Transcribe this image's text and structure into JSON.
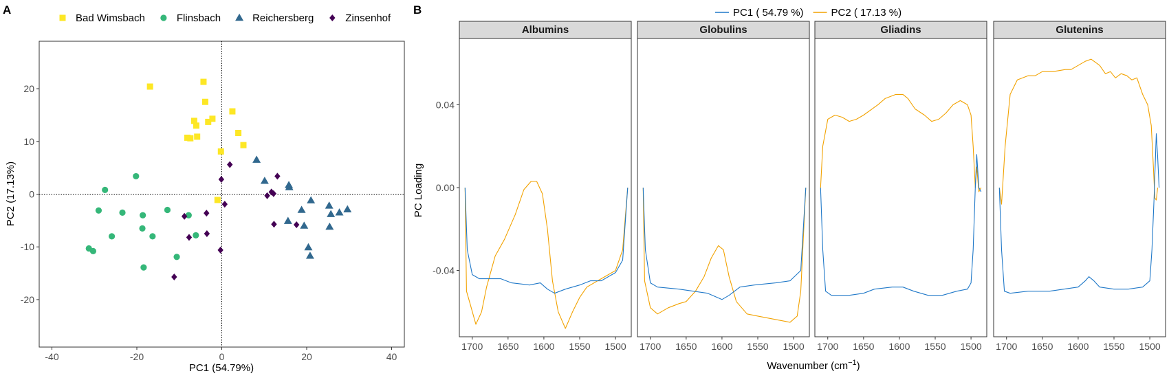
{
  "panel_labels": {
    "a": "A",
    "b": "B"
  },
  "chart_data": [
    {
      "type": "scatter",
      "xlabel": "PC1 (54.79%)",
      "ylabel": "PC2 (17.13%)",
      "xlim": [
        -43,
        43
      ],
      "ylim": [
        -29,
        29
      ],
      "xticks": [
        -40,
        -20,
        0,
        20,
        40
      ],
      "yticks": [
        -20,
        -10,
        0,
        10,
        20
      ],
      "reference_lines": {
        "x": 0,
        "y": 0,
        "style": "dotted"
      },
      "legend_position": "top",
      "series": [
        {
          "name": "Bad Wimsbach",
          "color": "#FDE725",
          "shape": "square",
          "points": [
            [
              -16.9,
              20.4
            ],
            [
              -4.3,
              21.3
            ],
            [
              -3.9,
              17.5
            ],
            [
              -6.5,
              13.9
            ],
            [
              -6.0,
              13.0
            ],
            [
              -3.2,
              13.7
            ],
            [
              -2.2,
              14.3
            ],
            [
              2.5,
              15.7
            ],
            [
              3.9,
              11.6
            ],
            [
              5.1,
              9.3
            ],
            [
              -7.4,
              10.6
            ],
            [
              -8.1,
              10.7
            ],
            [
              -5.8,
              10.9
            ],
            [
              -0.2,
              8.1
            ],
            [
              -1.0,
              -1.1
            ]
          ]
        },
        {
          "name": "Flinsbach",
          "color": "#35B779",
          "shape": "circle",
          "points": [
            [
              -20.2,
              3.4
            ],
            [
              -27.5,
              0.8
            ],
            [
              -29.0,
              -3.1
            ],
            [
              -23.4,
              -3.5
            ],
            [
              -18.6,
              -4.0
            ],
            [
              -12.8,
              -3.0
            ],
            [
              -18.7,
              -6.5
            ],
            [
              -16.3,
              -8.0
            ],
            [
              -25.9,
              -8.0
            ],
            [
              -31.3,
              -10.3
            ],
            [
              -30.3,
              -10.8
            ],
            [
              -18.4,
              -13.9
            ],
            [
              -10.6,
              -11.9
            ],
            [
              -7.8,
              -4.0
            ],
            [
              -6.1,
              -7.8
            ]
          ]
        },
        {
          "name": "Reichersberg",
          "color": "#31688E",
          "shape": "triangle",
          "points": [
            [
              8.2,
              6.5
            ],
            [
              10.1,
              2.5
            ],
            [
              15.8,
              1.7
            ],
            [
              15.9,
              1.3
            ],
            [
              21.0,
              -1.2
            ],
            [
              18.8,
              -3.0
            ],
            [
              25.3,
              -2.2
            ],
            [
              25.7,
              -3.8
            ],
            [
              27.7,
              -3.5
            ],
            [
              29.6,
              -2.9
            ],
            [
              15.6,
              -5.1
            ],
            [
              19.4,
              -6.0
            ],
            [
              25.4,
              -6.2
            ],
            [
              20.4,
              -10.1
            ],
            [
              20.8,
              -11.7
            ]
          ]
        },
        {
          "name": "Zinsenhof",
          "color": "#440154",
          "shape": "diamond",
          "points": [
            [
              1.9,
              5.6
            ],
            [
              -0.1,
              2.8
            ],
            [
              13.1,
              3.4
            ],
            [
              11.7,
              0.4
            ],
            [
              12.2,
              0.1
            ],
            [
              10.7,
              -0.3
            ],
            [
              0.7,
              -1.9
            ],
            [
              -3.6,
              -3.6
            ],
            [
              -8.8,
              -4.2
            ],
            [
              12.3,
              -5.7
            ],
            [
              17.6,
              -5.8
            ],
            [
              -3.5,
              -7.5
            ],
            [
              -7.7,
              -8.2
            ],
            [
              -0.3,
              -10.6
            ],
            [
              -11.2,
              -15.7
            ]
          ]
        }
      ]
    },
    {
      "type": "line",
      "ylabel": "PC Loading",
      "xlabel_main": "Wavenumber (cm",
      "xlabel_sup": "−1",
      "xlabel_close": ")",
      "xlim": [
        1718,
        1478
      ],
      "ylim": [
        -0.072,
        0.072
      ],
      "xticks": [
        1700,
        1650,
        1600,
        1550,
        1500
      ],
      "yticks": [
        -0.04,
        0.0,
        0.04
      ],
      "ytick_labels": [
        "-0.04",
        "0.00",
        "0.04"
      ],
      "legend_position": "top",
      "legend": [
        {
          "name": "PC1 ( 54.79 %)",
          "color": "#1F78C8"
        },
        {
          "name": "PC2 ( 17.13 %)",
          "color": "#F2A200"
        }
      ],
      "facets": [
        {
          "title": "Albumins",
          "pc1": [
            [
              1710,
              0.0
            ],
            [
              1707,
              -0.03
            ],
            [
              1700,
              -0.042
            ],
            [
              1690,
              -0.044
            ],
            [
              1660,
              -0.044
            ],
            [
              1645,
              -0.046
            ],
            [
              1620,
              -0.047
            ],
            [
              1605,
              -0.046
            ],
            [
              1595,
              -0.049
            ],
            [
              1585,
              -0.051
            ],
            [
              1570,
              -0.049
            ],
            [
              1550,
              -0.047
            ],
            [
              1535,
              -0.045
            ],
            [
              1520,
              -0.045
            ],
            [
              1500,
              -0.041
            ],
            [
              1490,
              -0.035
            ],
            [
              1483,
              0.0
            ]
          ],
          "pc2": [
            [
              1710,
              0.0
            ],
            [
              1708,
              -0.05
            ],
            [
              1703,
              -0.056
            ],
            [
              1695,
              -0.066
            ],
            [
              1687,
              -0.06
            ],
            [
              1680,
              -0.048
            ],
            [
              1668,
              -0.033
            ],
            [
              1655,
              -0.025
            ],
            [
              1640,
              -0.013
            ],
            [
              1628,
              -0.001
            ],
            [
              1618,
              0.003
            ],
            [
              1610,
              0.003
            ],
            [
              1602,
              -0.003
            ],
            [
              1595,
              -0.02
            ],
            [
              1588,
              -0.045
            ],
            [
              1580,
              -0.06
            ],
            [
              1570,
              -0.068
            ],
            [
              1560,
              -0.06
            ],
            [
              1550,
              -0.053
            ],
            [
              1540,
              -0.048
            ],
            [
              1525,
              -0.045
            ],
            [
              1510,
              -0.042
            ],
            [
              1500,
              -0.04
            ],
            [
              1490,
              -0.03
            ],
            [
              1483,
              0.0
            ]
          ]
        },
        {
          "title": "Globulins",
          "pc1": [
            [
              1710,
              0.0
            ],
            [
              1707,
              -0.03
            ],
            [
              1700,
              -0.046
            ],
            [
              1690,
              -0.048
            ],
            [
              1660,
              -0.049
            ],
            [
              1640,
              -0.05
            ],
            [
              1620,
              -0.051
            ],
            [
              1600,
              -0.054
            ],
            [
              1590,
              -0.052
            ],
            [
              1575,
              -0.048
            ],
            [
              1555,
              -0.047
            ],
            [
              1525,
              -0.046
            ],
            [
              1505,
              -0.045
            ],
            [
              1490,
              -0.04
            ],
            [
              1483,
              0.0
            ]
          ],
          "pc2": [
            [
              1710,
              0.0
            ],
            [
              1708,
              -0.045
            ],
            [
              1700,
              -0.058
            ],
            [
              1690,
              -0.061
            ],
            [
              1675,
              -0.058
            ],
            [
              1660,
              -0.056
            ],
            [
              1650,
              -0.055
            ],
            [
              1637,
              -0.05
            ],
            [
              1625,
              -0.043
            ],
            [
              1615,
              -0.034
            ],
            [
              1605,
              -0.028
            ],
            [
              1598,
              -0.03
            ],
            [
              1590,
              -0.043
            ],
            [
              1580,
              -0.055
            ],
            [
              1565,
              -0.061
            ],
            [
              1550,
              -0.062
            ],
            [
              1535,
              -0.063
            ],
            [
              1520,
              -0.064
            ],
            [
              1505,
              -0.065
            ],
            [
              1495,
              -0.062
            ],
            [
              1490,
              -0.05
            ],
            [
              1483,
              0.0
            ]
          ]
        },
        {
          "title": "Gliadins",
          "pc1": [
            [
              1710,
              0.0
            ],
            [
              1707,
              -0.03
            ],
            [
              1703,
              -0.05
            ],
            [
              1695,
              -0.052
            ],
            [
              1670,
              -0.052
            ],
            [
              1650,
              -0.051
            ],
            [
              1635,
              -0.049
            ],
            [
              1610,
              -0.048
            ],
            [
              1595,
              -0.048
            ],
            [
              1580,
              -0.05
            ],
            [
              1560,
              -0.052
            ],
            [
              1540,
              -0.052
            ],
            [
              1520,
              -0.05
            ],
            [
              1505,
              -0.049
            ],
            [
              1500,
              -0.046
            ],
            [
              1497,
              -0.03
            ],
            [
              1494,
              0.0
            ],
            [
              1492,
              0.016
            ],
            [
              1489,
              0.0
            ],
            [
              1486,
              -0.002
            ]
          ],
          "pc2": [
            [
              1710,
              0.0
            ],
            [
              1707,
              0.02
            ],
            [
              1700,
              0.033
            ],
            [
              1690,
              0.035
            ],
            [
              1680,
              0.034
            ],
            [
              1670,
              0.032
            ],
            [
              1660,
              0.033
            ],
            [
              1650,
              0.035
            ],
            [
              1630,
              0.04
            ],
            [
              1620,
              0.043
            ],
            [
              1605,
              0.045
            ],
            [
              1595,
              0.045
            ],
            [
              1588,
              0.043
            ],
            [
              1578,
              0.038
            ],
            [
              1565,
              0.035
            ],
            [
              1555,
              0.032
            ],
            [
              1545,
              0.033
            ],
            [
              1535,
              0.036
            ],
            [
              1525,
              0.04
            ],
            [
              1515,
              0.042
            ],
            [
              1505,
              0.04
            ],
            [
              1500,
              0.035
            ],
            [
              1497,
              0.02
            ],
            [
              1494,
              0.0
            ],
            [
              1492,
              0.01
            ],
            [
              1489,
              -0.002
            ],
            [
              1486,
              0.0
            ]
          ]
        },
        {
          "title": "Glutenins",
          "pc1": [
            [
              1710,
              0.0
            ],
            [
              1707,
              -0.03
            ],
            [
              1703,
              -0.05
            ],
            [
              1695,
              -0.051
            ],
            [
              1670,
              -0.05
            ],
            [
              1640,
              -0.05
            ],
            [
              1620,
              -0.049
            ],
            [
              1600,
              -0.048
            ],
            [
              1590,
              -0.045
            ],
            [
              1585,
              -0.043
            ],
            [
              1578,
              -0.045
            ],
            [
              1570,
              -0.048
            ],
            [
              1550,
              -0.049
            ],
            [
              1530,
              -0.049
            ],
            [
              1510,
              -0.048
            ],
            [
              1500,
              -0.045
            ],
            [
              1497,
              -0.03
            ],
            [
              1494,
              -0.005
            ],
            [
              1491,
              0.026
            ],
            [
              1489,
              0.015
            ],
            [
              1487,
              0.0
            ]
          ],
          "pc2": [
            [
              1710,
              0.0
            ],
            [
              1707,
              -0.008
            ],
            [
              1702,
              0.02
            ],
            [
              1695,
              0.045
            ],
            [
              1685,
              0.052
            ],
            [
              1670,
              0.054
            ],
            [
              1660,
              0.054
            ],
            [
              1650,
              0.056
            ],
            [
              1635,
              0.056
            ],
            [
              1618,
              0.057
            ],
            [
              1610,
              0.057
            ],
            [
              1600,
              0.059
            ],
            [
              1590,
              0.061
            ],
            [
              1582,
              0.062
            ],
            [
              1570,
              0.059
            ],
            [
              1562,
              0.055
            ],
            [
              1555,
              0.056
            ],
            [
              1548,
              0.053
            ],
            [
              1540,
              0.055
            ],
            [
              1532,
              0.054
            ],
            [
              1525,
              0.052
            ],
            [
              1518,
              0.053
            ],
            [
              1510,
              0.045
            ],
            [
              1503,
              0.04
            ],
            [
              1498,
              0.03
            ],
            [
              1495,
              0.01
            ],
            [
              1493,
              -0.005
            ],
            [
              1491,
              -0.006
            ],
            [
              1489,
              0.0
            ]
          ]
        }
      ]
    }
  ]
}
